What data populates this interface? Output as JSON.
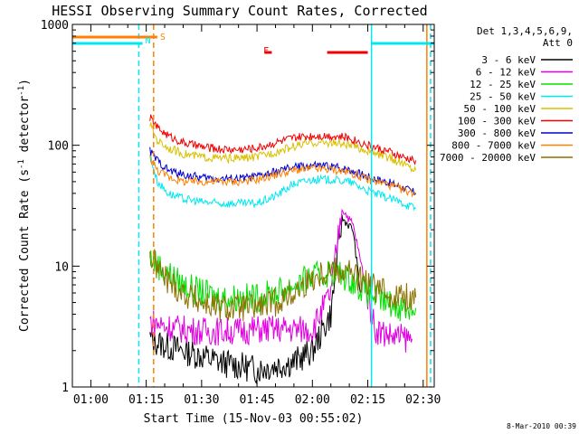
{
  "title": "HESSI Observing Summary Count Rates, Corrected",
  "footer_date": "8-Mar-2010 00:39",
  "colors": {
    "black": "#000000",
    "magenta": "#e000e0",
    "green": "#00e000",
    "cyan": "#00e8f0",
    "gold": "#d8c000",
    "red": "#f00000",
    "blue": "#0000d0",
    "orange": "#ff8000",
    "olive": "#8c7000"
  },
  "chart_data": {
    "type": "line",
    "title": "HESSI Observing Summary Count Rates, Corrected",
    "xlabel": "Start Time (15-Nov-03 00:55:02)",
    "ylabel": "Corrected Count Rate (s",
    "ylabel_sup1": "-1",
    "ylabel_mid": " detector",
    "ylabel_sup2": "-1",
    "ylabel_end": ")",
    "yscale": "log",
    "ylim": [
      1,
      1000
    ],
    "xlim": [
      "00:55",
      "02:33"
    ],
    "x_ticks": [
      "01:00",
      "01:15",
      "01:30",
      "01:45",
      "02:00",
      "02:15",
      "02:30"
    ],
    "y_ticks": [
      "1",
      "10",
      "100",
      "1000"
    ],
    "legend_header": [
      "Det 1,3,4,5,6,9,",
      "Att 0"
    ],
    "legend_position": "right",
    "series": [
      {
        "name": "3 - 6 keV",
        "color": "#000000",
        "x": [
          "01:16",
          "01:20",
          "01:25",
          "01:30",
          "01:35",
          "01:40",
          "01:45",
          "01:50",
          "01:55",
          "02:00",
          "02:05",
          "02:08",
          "02:11",
          "02:13"
        ],
        "y": [
          2.5,
          2.2,
          2.0,
          1.8,
          1.6,
          1.5,
          1.4,
          1.5,
          1.6,
          2.0,
          4.0,
          25,
          20,
          6
        ]
      },
      {
        "name": "6 - 12 keV",
        "color": "#e000e0",
        "x": [
          "01:16",
          "01:20",
          "01:25",
          "01:30",
          "01:35",
          "01:40",
          "01:45",
          "01:50",
          "01:55",
          "02:00",
          "02:05",
          "02:08",
          "02:11",
          "02:14",
          "02:17",
          "02:22",
          "02:27"
        ],
        "y": [
          3.5,
          3.2,
          3.0,
          2.9,
          2.9,
          2.9,
          3.0,
          3.0,
          3.0,
          3.0,
          6,
          30,
          22,
          8,
          3.0,
          2.6,
          2.5
        ]
      },
      {
        "name": "12 - 25 keV",
        "color": "#00e000",
        "x": [
          "01:16",
          "01:20",
          "01:25",
          "01:30",
          "01:35",
          "01:40",
          "01:45",
          "01:50",
          "01:55",
          "02:00",
          "02:05",
          "02:10",
          "02:15",
          "02:20",
          "02:25",
          "02:28"
        ],
        "y": [
          12,
          9,
          7,
          6,
          5.5,
          5.5,
          5.5,
          6,
          7,
          8,
          9,
          8,
          6,
          5,
          4.5,
          4.5
        ]
      },
      {
        "name": "25 - 50 keV",
        "color": "#00e8f0",
        "x": [
          "01:16",
          "01:18",
          "01:21",
          "01:25",
          "01:30",
          "01:35",
          "01:40",
          "01:45",
          "01:50",
          "01:55",
          "02:00",
          "02:05",
          "02:10",
          "02:15",
          "02:20",
          "02:25",
          "02:28"
        ],
        "y": [
          85,
          50,
          40,
          36,
          34,
          33,
          33,
          33,
          38,
          48,
          52,
          52,
          50,
          42,
          37,
          33,
          30
        ]
      },
      {
        "name": "50 - 100 keV",
        "color": "#d8c000",
        "x": [
          "01:16",
          "01:18",
          "01:21",
          "01:25",
          "01:30",
          "01:35",
          "01:40",
          "01:45",
          "01:50",
          "01:55",
          "02:00",
          "02:05",
          "02:10",
          "02:15",
          "02:20",
          "02:25",
          "02:28"
        ],
        "y": [
          150,
          110,
          95,
          85,
          80,
          78,
          78,
          80,
          88,
          98,
          105,
          105,
          100,
          90,
          80,
          70,
          62
        ]
      },
      {
        "name": "100 - 300 keV",
        "color": "#f00000",
        "x": [
          "01:16",
          "01:18",
          "01:21",
          "01:25",
          "01:30",
          "01:35",
          "01:40",
          "01:45",
          "01:50",
          "01:55",
          "02:00",
          "02:05",
          "02:10",
          "02:15",
          "02:20",
          "02:25",
          "02:28"
        ],
        "y": [
          170,
          140,
          120,
          105,
          97,
          93,
          92,
          95,
          105,
          115,
          120,
          120,
          115,
          100,
          90,
          78,
          75
        ]
      },
      {
        "name": "300 - 800 keV",
        "color": "#0000d0",
        "x": [
          "01:16",
          "01:18",
          "01:21",
          "01:25",
          "01:30",
          "01:35",
          "01:40",
          "01:45",
          "01:50",
          "01:55",
          "02:00",
          "02:05",
          "02:10",
          "02:15",
          "02:20",
          "02:25",
          "02:28"
        ],
        "y": [
          90,
          75,
          62,
          57,
          54,
          53,
          53,
          55,
          60,
          66,
          68,
          67,
          63,
          55,
          50,
          44,
          40
        ]
      },
      {
        "name": "800 - 7000 keV",
        "color": "#ff8000",
        "x": [
          "01:16",
          "01:18",
          "01:21",
          "01:25",
          "01:30",
          "01:35",
          "01:40",
          "01:45",
          "01:50",
          "01:55",
          "02:00",
          "02:05",
          "02:10",
          "02:15",
          "02:20",
          "02:25",
          "02:28"
        ],
        "y": [
          80,
          62,
          55,
          50,
          50,
          50,
          50,
          52,
          57,
          62,
          64,
          63,
          60,
          52,
          48,
          42,
          40
        ]
      },
      {
        "name": "7000 - 20000 keV",
        "color": "#8c7000",
        "x": [
          "01:16",
          "01:20",
          "01:25",
          "01:30",
          "01:35",
          "01:40",
          "01:45",
          "01:50",
          "01:55",
          "02:00",
          "02:05",
          "02:10",
          "02:15",
          "02:20",
          "02:25",
          "02:28"
        ],
        "y": [
          12,
          8,
          6,
          5,
          4.5,
          4.5,
          4.6,
          5,
          6,
          8,
          9.5,
          9,
          7,
          6,
          5.5,
          5.5
        ]
      }
    ],
    "vertical_lines": [
      {
        "x": "01:13",
        "color": "#00e8f0",
        "style": "dashed"
      },
      {
        "x": "01:17",
        "color": "#ff8000",
        "style": "dashed"
      },
      {
        "x": "02:16",
        "color": "#00e8f0",
        "style": "solid"
      },
      {
        "x": "02:31",
        "color": "#ff8000",
        "style": "solid"
      },
      {
        "x": "02:32",
        "color": "#00e8f0",
        "style": "dashed"
      }
    ],
    "annotations": [
      {
        "text": "N",
        "x": "01:14",
        "color": "#00e8f0"
      },
      {
        "text": "S",
        "x": "01:18",
        "color": "#ff8000"
      },
      {
        "text": "F",
        "x": "01:46",
        "color": "#f00000"
      }
    ]
  }
}
